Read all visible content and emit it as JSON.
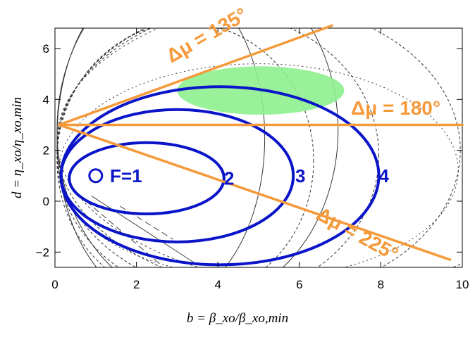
{
  "chart_data": {
    "type": "line",
    "title": "",
    "xlabel": "b = β_xo/β_xo,min",
    "ylabel": "d = η_xo/η_xo,min",
    "xlim": [
      0,
      10
    ],
    "ylim": [
      -2.6,
      6.8
    ],
    "x_ticks": [
      "0",
      "2",
      "4",
      "6",
      "8",
      "10"
    ],
    "y_ticks": [
      "−2",
      "0",
      "2",
      "4",
      "6"
    ],
    "x_tick_values": [
      0,
      2,
      4,
      6,
      8,
      10
    ],
    "y_tick_values": [
      -2,
      0,
      2,
      4,
      6
    ],
    "grid": false,
    "ellipses": [
      {
        "F": 1,
        "label": "F=1",
        "cx": 1,
        "cy": 1,
        "rx": 0,
        "ry": 0
      },
      {
        "F": 2,
        "label": "2",
        "cx": 2.25,
        "cy": 0.9,
        "rx": 1.9,
        "ry": 1.4
      },
      {
        "F": 3,
        "label": "3",
        "cx": 3.0,
        "cy": 1.0,
        "rx": 2.85,
        "ry": 2.6
      },
      {
        "F": 4,
        "label": "4",
        "cx": 4.05,
        "cy": 1.0,
        "rx": 3.9,
        "ry": 3.5
      }
    ],
    "phase_advance_lines": [
      {
        "label": "Δμ = 135°",
        "from": [
          0.1,
          3.0
        ],
        "to": [
          6.8,
          6.9
        ]
      },
      {
        "label": "Δμ = 180°",
        "from": [
          0.1,
          3.0
        ],
        "to": [
          10.0,
          3.0
        ]
      },
      {
        "label": "Δμ = 225°",
        "from": [
          0.1,
          3.0
        ],
        "to": [
          9.7,
          -2.3
        ]
      }
    ],
    "highlight_region": {
      "cx": 5.05,
      "cy": 4.35,
      "rx": 2.05,
      "ry": 0.95,
      "color": "#8ef08e"
    },
    "colors": {
      "ellipse": "#0a14c8",
      "phase_line": "#f59a3a",
      "contour": "#333333"
    }
  }
}
